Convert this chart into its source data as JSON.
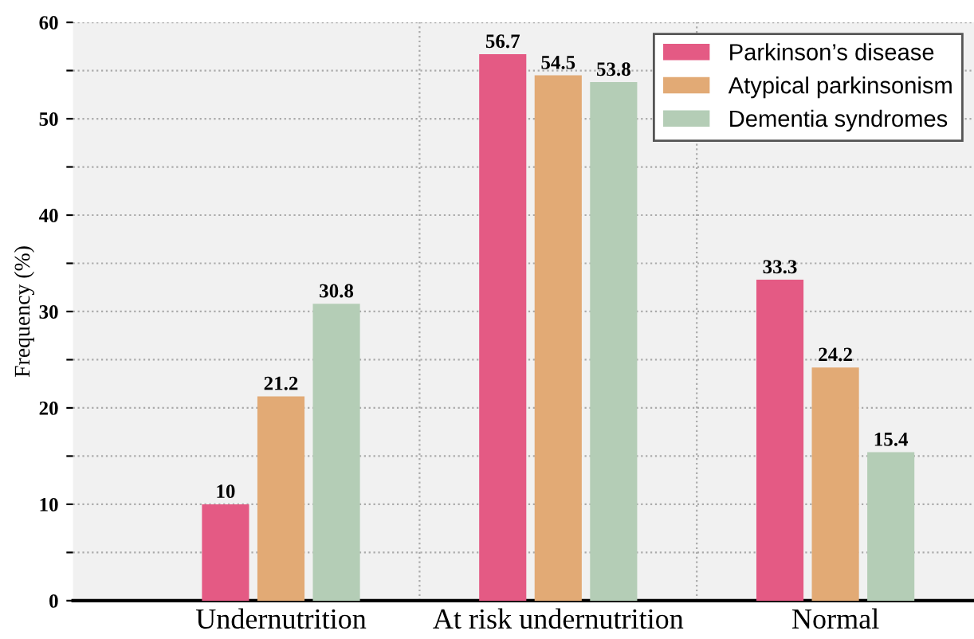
{
  "chart_data": {
    "type": "bar",
    "ylabel": "Frequency (%)",
    "categories": [
      "Undernutrition",
      "At risk undernutrition",
      "Normal"
    ],
    "series": [
      {
        "name": "Parkinson’s disease",
        "color": "#e45a84",
        "values": [
          10,
          56.7,
          33.3
        ]
      },
      {
        "name": "Atypical parkinsonism",
        "color": "#e2aa75",
        "values": [
          21.2,
          54.5,
          24.2
        ]
      },
      {
        "name": "Dementia syndromes",
        "color": "#b4cdb6",
        "values": [
          30.8,
          53.8,
          15.4
        ]
      }
    ],
    "ylim": [
      0,
      60
    ],
    "yticks": [
      0,
      {
        "value": 5,
        "label": null
      },
      10,
      {
        "value": 15,
        "label": null
      },
      20,
      {
        "value": 25,
        "label": null
      },
      30,
      {
        "value": 35,
        "label": null
      },
      40,
      {
        "value": 45,
        "label": null
      },
      50,
      {
        "value": 55,
        "label": null
      },
      60
    ],
    "grid": "y",
    "legend": "top right",
    "data_labels": true
  }
}
